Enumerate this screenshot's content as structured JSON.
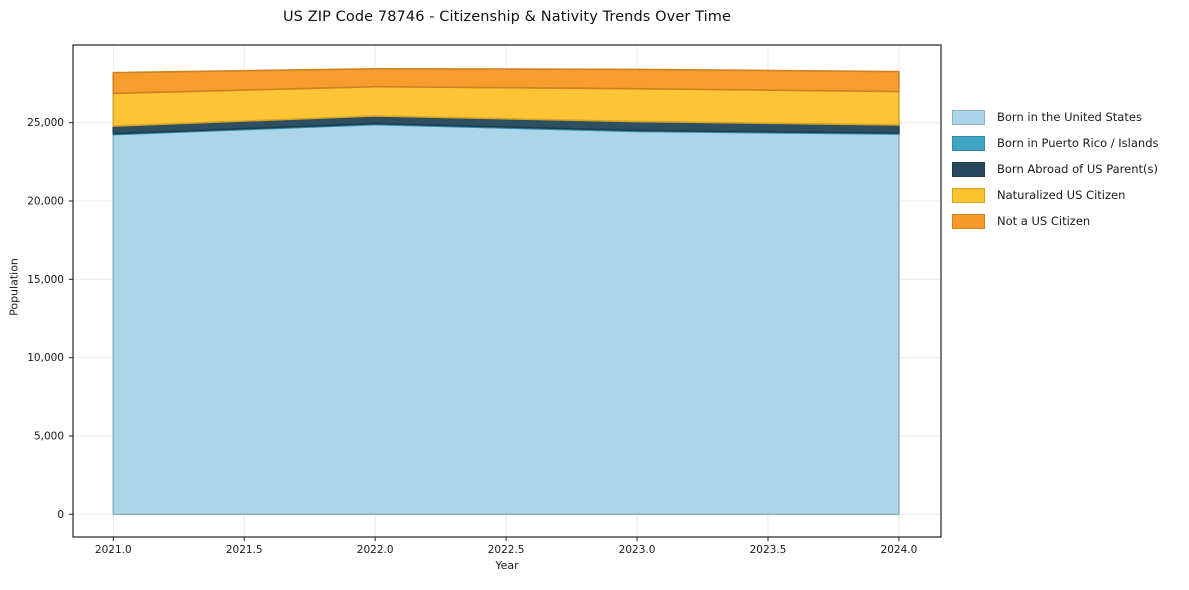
{
  "title": "US ZIP Code 78746 - Citizenship & Nativity Trends Over Time",
  "chart_data": {
    "type": "area",
    "stacked": true,
    "title": "US ZIP Code 78746 - Citizenship & Nativity Trends Over Time",
    "xlabel": "Year",
    "ylabel": "Population",
    "grid": true,
    "legend_position": "right-outside",
    "x": [
      2021,
      2022,
      2023,
      2024
    ],
    "x_tick_values": [
      2021.0,
      2021.5,
      2022.0,
      2022.5,
      2023.0,
      2023.5,
      2024.0
    ],
    "x_tick_labels": [
      "2021.0",
      "2021.5",
      "2022.0",
      "2022.5",
      "2023.0",
      "2023.5",
      "2024.0"
    ],
    "y_tick_values": [
      0,
      5000,
      10000,
      15000,
      20000,
      25000
    ],
    "y_tick_labels": [
      "0",
      "5,000",
      "10,000",
      "15,000",
      "20,000",
      "25,000"
    ],
    "ylim": [
      0,
      30000
    ],
    "xlim": [
      2020.85,
      2024.16
    ],
    "series": [
      {
        "name": "Born in the United States",
        "color": "#a9d4e9",
        "values": [
          24240,
          24880,
          24440,
          24280
        ]
      },
      {
        "name": "Born in Puerto Rico / Islands",
        "color": "#3fa5c2",
        "values": [
          60,
          60,
          70,
          60
        ]
      },
      {
        "name": "Born Abroad of US Parent(s)",
        "color": "#26495d",
        "values": [
          480,
          490,
          560,
          520
        ]
      },
      {
        "name": "Naturalized US Citizen",
        "color": "#fdc32f",
        "values": [
          2090,
          1870,
          2100,
          2130
        ]
      },
      {
        "name": "Not a US Citizen",
        "color": "#f79a28",
        "values": [
          1330,
          1140,
          1230,
          1270
        ]
      }
    ],
    "colors": {
      "background": "#ffffff",
      "gridline": "#ebebeb",
      "spine": "#222222",
      "text": "#1a1a1a"
    }
  }
}
